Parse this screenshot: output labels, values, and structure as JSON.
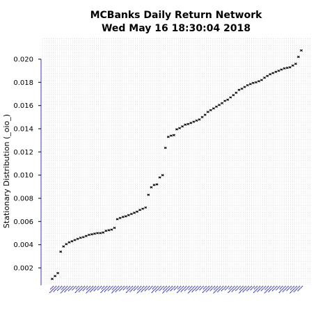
{
  "chart_data": {
    "type": "scatter",
    "title": "MCBanks  Daily Return Network",
    "subtitle": "Wed May 16 18:30:04 2018",
    "xlabel": "",
    "ylabel": "Stationary Distribution (_oio_)",
    "ylim": [
      0.0005,
      0.0215
    ],
    "yticks": [
      0.002,
      0.004,
      0.006,
      0.008,
      0.01,
      0.012,
      0.014,
      0.016,
      0.018,
      0.02
    ],
    "ytick_labels": [
      "0.002",
      "0.004",
      "0.006",
      "0.008",
      "0.010",
      "0.012",
      "0.014",
      "0.016",
      "0.018",
      "0.020"
    ],
    "grid": true,
    "legend": "none",
    "colors": {
      "points": "#000000",
      "grid": "#c8c8c8",
      "category_labels": "#1f1fa8",
      "axis": "#000000"
    },
    "values": [
      0.00105,
      0.0013,
      0.00155,
      0.0034,
      0.00385,
      0.00405,
      0.0042,
      0.0043,
      0.0044,
      0.0045,
      0.0046,
      0.00465,
      0.00475,
      0.00485,
      0.0049,
      0.00495,
      0.005,
      0.005,
      0.00505,
      0.0052,
      0.00525,
      0.0053,
      0.00545,
      0.0062,
      0.0063,
      0.0064,
      0.00645,
      0.00655,
      0.00665,
      0.00675,
      0.00685,
      0.007,
      0.0071,
      0.0072,
      0.0083,
      0.00895,
      0.00915,
      0.0092,
      0.0098,
      0.01,
      0.01235,
      0.0133,
      0.0134,
      0.01345,
      0.01395,
      0.01405,
      0.0142,
      0.01435,
      0.0144,
      0.0145,
      0.0146,
      0.0147,
      0.0148,
      0.015,
      0.0152,
      0.01545,
      0.0156,
      0.01575,
      0.0159,
      0.01605,
      0.0162,
      0.0164,
      0.0165,
      0.0167,
      0.0169,
      0.0171,
      0.01735,
      0.01745,
      0.0176,
      0.01775,
      0.01785,
      0.01795,
      0.018,
      0.0181,
      0.0182,
      0.0184,
      0.01855,
      0.0187,
      0.0188,
      0.0189,
      0.019,
      0.0191,
      0.0192,
      0.01925,
      0.0193,
      0.01945,
      0.0196,
      0.0202,
      0.02075
    ]
  }
}
